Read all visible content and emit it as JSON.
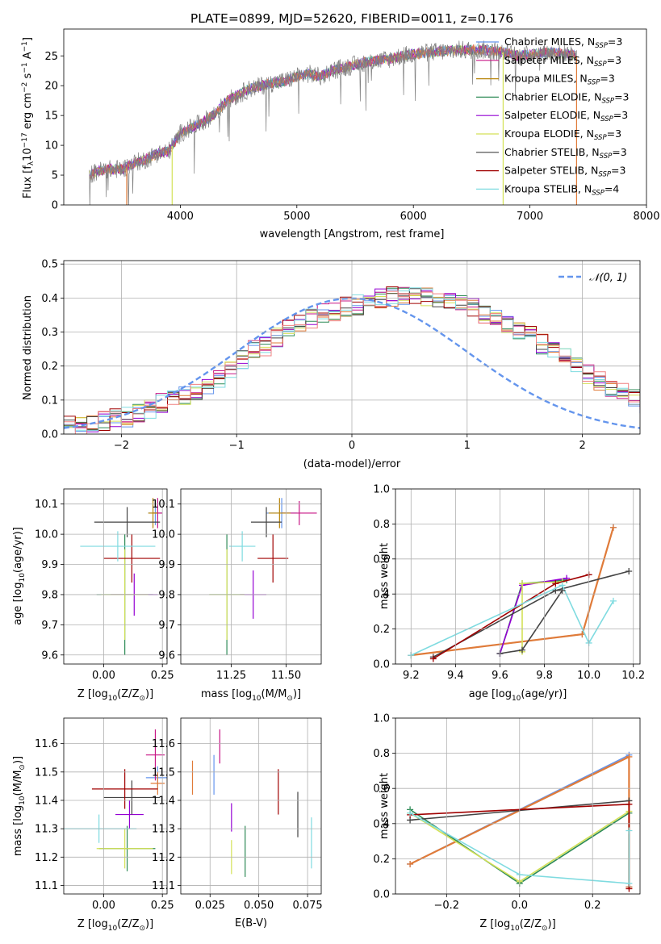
{
  "colors": {
    "Chabrier MILES": "#6495ed",
    "Salpeter MILES": "#c71585",
    "Kroupa MILES": "#b8860b",
    "Chabrier ELODIE": "#2e8b57",
    "Salpeter ELODIE": "#9400d3",
    "Kroupa ELODIE": "#d4e157",
    "Chabrier STELIB": "#444444",
    "Salpeter STELIB": "#a00000",
    "Kroupa STELIB": "#7fdbe0",
    "gaussian": "#6495ed",
    "orange": "#e07b39",
    "pink": "#f08080",
    "green2": "#7cb342"
  },
  "chart_data": [
    {
      "type": "line",
      "title": "PLATE=0899, MJD=52620, FIBERID=0011, z=0.176",
      "xlabel": "wavelength [Angstrom, rest frame]",
      "ylabel_parts": [
        "Flux [f",
        "λ",
        "10",
        "−17",
        " erg cm",
        "−2",
        " s",
        "−1",
        " A",
        "−1",
        "]"
      ],
      "xlim": [
        3000,
        8000
      ],
      "ylim": [
        0,
        29.5
      ],
      "xticks": [
        "4000",
        "5000",
        "6000",
        "7000",
        "8000"
      ],
      "yticks": [
        "0",
        "5",
        "10",
        "15",
        "20",
        "25"
      ],
      "legend_position": "upper right",
      "legend": [
        {
          "label": "Chabrier MILES, N",
          "sub": "SSP",
          "tail": "=3"
        },
        {
          "label": "Salpeter MILES, N",
          "sub": "SSP",
          "tail": "=3"
        },
        {
          "label": "Kroupa MILES, N",
          "sub": "SSP",
          "tail": "=3"
        },
        {
          "label": "Chabrier ELODIE, N",
          "sub": "SSP",
          "tail": "=3"
        },
        {
          "label": "Salpeter ELODIE, N",
          "sub": "SSP",
          "tail": "=3"
        },
        {
          "label": "Kroupa ELODIE, N",
          "sub": "SSP",
          "tail": "=3"
        },
        {
          "label": "Chabrier STELIB, N",
          "sub": "SSP",
          "tail": "=3"
        },
        {
          "label": "Salpeter STELIB, N",
          "sub": "SSP",
          "tail": "=3"
        },
        {
          "label": "Kroupa STELIB, N",
          "sub": "SSP",
          "tail": "=4"
        }
      ],
      "continuum": [
        [
          3220,
          5
        ],
        [
          3300,
          5.7
        ],
        [
          3400,
          6
        ],
        [
          3500,
          6
        ],
        [
          3600,
          7
        ],
        [
          3700,
          7.6
        ],
        [
          3800,
          8.6
        ],
        [
          3900,
          9
        ],
        [
          4000,
          12
        ],
        [
          4100,
          13
        ],
        [
          4200,
          14
        ],
        [
          4300,
          15.3
        ],
        [
          4400,
          17.5
        ],
        [
          4500,
          18.5
        ],
        [
          4600,
          19.5
        ],
        [
          4700,
          20
        ],
        [
          4800,
          20.5
        ],
        [
          4900,
          20.8
        ],
        [
          5000,
          21.5
        ],
        [
          5100,
          22
        ],
        [
          5200,
          21.5
        ],
        [
          5300,
          22.5
        ],
        [
          5400,
          23
        ],
        [
          5500,
          23.5
        ],
        [
          5600,
          24
        ],
        [
          5700,
          24.2
        ],
        [
          5800,
          24.5
        ],
        [
          5900,
          25
        ],
        [
          6000,
          25.3
        ],
        [
          6100,
          25.5
        ],
        [
          6200,
          25.7
        ],
        [
          6300,
          25.8
        ],
        [
          6400,
          26
        ],
        [
          6500,
          26
        ],
        [
          6600,
          26
        ],
        [
          6700,
          25.8
        ],
        [
          6800,
          25.5
        ],
        [
          6900,
          25
        ],
        [
          7000,
          25.2
        ],
        [
          7100,
          25.5
        ],
        [
          7200,
          25.5
        ],
        [
          7300,
          25.3
        ],
        [
          7400,
          25
        ]
      ],
      "drops": [
        {
          "x": 3540,
          "series": "orange"
        },
        {
          "x": 3930,
          "series": "Kroupa ELODIE"
        },
        {
          "x": 6770,
          "series": "Kroupa ELODIE"
        },
        {
          "x": 7400,
          "series": "orange"
        }
      ]
    },
    {
      "type": "histogram",
      "xlabel": "(data-model)/error",
      "ylabel": "Normed distribution",
      "xlim": [
        -2.5,
        2.5
      ],
      "ylim": [
        0,
        0.51
      ],
      "xticks": [
        "−2",
        "−1",
        "0",
        "1",
        "2"
      ],
      "yticks": [
        "0.0",
        "0.1",
        "0.2",
        "0.3",
        "0.4",
        "0.5"
      ],
      "legend_position": "upper right",
      "legend": [
        "𝒩(0, 1)"
      ],
      "bin_width": 0.1,
      "base_hist": [
        0.025,
        0.028,
        0.033,
        0.04,
        0.048,
        0.05,
        0.06,
        0.075,
        0.09,
        0.1,
        0.11,
        0.125,
        0.145,
        0.165,
        0.195,
        0.22,
        0.245,
        0.26,
        0.285,
        0.305,
        0.32,
        0.34,
        0.355,
        0.36,
        0.375,
        0.38,
        0.39,
        0.4,
        0.405,
        0.41,
        0.41,
        0.4,
        0.395,
        0.39,
        0.38,
        0.37,
        0.355,
        0.34,
        0.325,
        0.31,
        0.29,
        0.265,
        0.245,
        0.225,
        0.2,
        0.175,
        0.155,
        0.135,
        0.12,
        0.105,
        0.09,
        0.075,
        0.065,
        0.055,
        0.048,
        0.04,
        0.033,
        0.028,
        0.025,
        0.02
      ]
    },
    {
      "type": "scatter",
      "xlabel": "Z [log10(Z/Z⊙)]",
      "ylabel": "age  [log10(age/yr)]",
      "xlim": [
        -0.17,
        0.27
      ],
      "ylim": [
        9.57,
        10.15
      ],
      "xticks": [
        "0.00",
        "0.25"
      ],
      "yticks": [
        "9.6",
        "9.7",
        "9.8",
        "9.9",
        "10.0",
        "10.1"
      ],
      "errorbars": [
        {
          "c": "Chabrier MILES",
          "x": 0.22,
          "y": 10.07,
          "xe": 0.03,
          "ye": 0.04
        },
        {
          "c": "Salpeter MILES",
          "x": 0.23,
          "y": 10.07,
          "xe": 0.02,
          "ye": 0.05
        },
        {
          "c": "Kroupa MILES",
          "x": 0.21,
          "y": 10.07,
          "xe": 0.02,
          "ye": 0.05
        },
        {
          "c": "Chabrier ELODIE",
          "x": 0.09,
          "y": 9.8,
          "xe": 0.12,
          "ye": 0.2
        },
        {
          "c": "Salpeter ELODIE",
          "x": 0.13,
          "y": 9.8,
          "xe": 0.1,
          "ye": 0.07
        },
        {
          "c": "Kroupa ELODIE",
          "x": 0.09,
          "y": 9.8,
          "xe": 0.1,
          "ye": 0.15
        },
        {
          "c": "Chabrier STELIB",
          "x": 0.1,
          "y": 10.04,
          "xe": 0.14,
          "ye": 0.05
        },
        {
          "c": "Salpeter STELIB",
          "x": 0.12,
          "y": 9.92,
          "xe": 0.12,
          "ye": 0.08
        },
        {
          "c": "Kroupa STELIB",
          "x": 0.06,
          "y": 9.96,
          "xe": 0.16,
          "ye": 0.05
        }
      ]
    },
    {
      "type": "scatter",
      "xlabel": "mass [log10(M/M⊙)]",
      "ylabel": "",
      "xlim": [
        11.02,
        11.66
      ],
      "ylim": [
        9.57,
        10.15
      ],
      "xticks": [
        "11.25",
        "11.50"
      ],
      "yticks": [
        "9.6",
        "9.7",
        "9.8",
        "9.9",
        "10.0",
        "10.1"
      ],
      "errorbars": [
        {
          "c": "Chabrier MILES",
          "x": 11.48,
          "y": 10.07,
          "xe": 0.07,
          "ye": 0.05
        },
        {
          "c": "Salpeter MILES",
          "x": 11.56,
          "y": 10.07,
          "xe": 0.08,
          "ye": 0.04
        },
        {
          "c": "Kroupa MILES",
          "x": 11.47,
          "y": 10.07,
          "xe": 0.05,
          "ye": 0.05
        },
        {
          "c": "Chabrier ELODIE",
          "x": 11.23,
          "y": 9.8,
          "xe": 0.08,
          "ye": 0.2
        },
        {
          "c": "Salpeter ELODIE",
          "x": 11.35,
          "y": 9.8,
          "xe": 0.06,
          "ye": 0.08
        },
        {
          "c": "Kroupa ELODIE",
          "x": 11.23,
          "y": 9.8,
          "xe": 0.08,
          "ye": 0.15
        },
        {
          "c": "Chabrier STELIB",
          "x": 11.41,
          "y": 10.04,
          "xe": 0.07,
          "ye": 0.05
        },
        {
          "c": "Salpeter STELIB",
          "x": 11.44,
          "y": 9.92,
          "xe": 0.07,
          "ye": 0.08
        },
        {
          "c": "Kroupa STELIB",
          "x": 11.3,
          "y": 9.96,
          "xe": 0.06,
          "ye": 0.05
        }
      ]
    },
    {
      "type": "line",
      "xlabel": "age  [log10(age/yr)]",
      "ylabel": "mass weight",
      "xlim": [
        9.13,
        10.23
      ],
      "ylim": [
        0,
        1
      ],
      "xticks": [
        "9.2",
        "9.4",
        "9.6",
        "9.8",
        "10.0",
        "10.2"
      ],
      "yticks": [
        "0.0",
        "0.2",
        "0.4",
        "0.6",
        "0.8",
        "1.0"
      ],
      "series": [
        {
          "c": "Chabrier MILES",
          "x": [
            9.2,
            9.97,
            10.11
          ],
          "y": [
            0.05,
            0.17,
            0.78
          ]
        },
        {
          "c": "orange",
          "x": [
            9.2,
            9.97,
            10.11
          ],
          "y": [
            0.05,
            0.17,
            0.78
          ]
        },
        {
          "c": "Chabrier ELODIE",
          "x": [
            9.6,
            9.7,
            9.9
          ],
          "y": [
            0.06,
            0.46,
            0.48
          ]
        },
        {
          "c": "Salpeter ELODIE",
          "x": [
            9.6,
            9.7,
            9.9
          ],
          "y": [
            0.06,
            0.45,
            0.49
          ]
        },
        {
          "c": "Kroupa ELODIE",
          "x": [
            9.7,
            9.7,
            9.88
          ],
          "y": [
            0.07,
            0.46,
            0.47
          ]
        },
        {
          "c": "Chabrier STELIB",
          "x": [
            9.3,
            9.85,
            10.18
          ],
          "y": [
            0.04,
            0.42,
            0.53
          ]
        },
        {
          "c": "Salpeter STELIB",
          "x": [
            9.3,
            9.85,
            10.0
          ],
          "y": [
            0.03,
            0.46,
            0.51
          ]
        },
        {
          "c": "Kroupa STELIB",
          "x": [
            9.2,
            9.88,
            10.0,
            10.11
          ],
          "y": [
            0.05,
            0.45,
            0.12,
            0.36
          ]
        },
        {
          "c": "Chabrier STELIB",
          "x": [
            9.6,
            9.7,
            9.88
          ],
          "y": [
            0.06,
            0.08,
            0.42
          ]
        }
      ]
    },
    {
      "type": "scatter",
      "xlabel": "Z [log10(Z/Z⊙)]",
      "ylabel": "mass [log10(M/M⊙)]",
      "xlim": [
        -0.17,
        0.27
      ],
      "ylim": [
        11.07,
        11.69
      ],
      "xticks": [
        "0.00",
        "0.25"
      ],
      "yticks": [
        "11.1",
        "11.2",
        "11.3",
        "11.4",
        "11.5",
        "11.6"
      ],
      "errorbars": [
        {
          "c": "Chabrier MILES",
          "x": 0.23,
          "y": 11.48,
          "xe": 0.05,
          "ye": 0.04
        },
        {
          "c": "Salpeter MILES",
          "x": 0.22,
          "y": 11.56,
          "xe": 0.04,
          "ye": 0.09
        },
        {
          "c": "orange",
          "x": 0.23,
          "y": 11.46,
          "xe": 0.03,
          "ye": 0.04
        },
        {
          "c": "Chabrier ELODIE",
          "x": 0.1,
          "y": 11.23,
          "xe": 0.12,
          "ye": 0.08
        },
        {
          "c": "Salpeter ELODIE",
          "x": 0.11,
          "y": 11.35,
          "xe": 0.06,
          "ye": 0.05
        },
        {
          "c": "Kroupa ELODIE",
          "x": 0.09,
          "y": 11.23,
          "xe": 0.12,
          "ye": 0.07
        },
        {
          "c": "Chabrier STELIB",
          "x": 0.12,
          "y": 11.41,
          "xe": 0.12,
          "ye": 0.06
        },
        {
          "c": "Salpeter STELIB",
          "x": 0.09,
          "y": 11.44,
          "xe": 0.14,
          "ye": 0.07
        },
        {
          "c": "Kroupa STELIB",
          "x": -0.02,
          "y": 11.3,
          "xe": 0.16,
          "ye": 0.05
        }
      ]
    },
    {
      "type": "scatter",
      "xlabel": "E(B-V)",
      "ylabel": "",
      "xlim": [
        0.01,
        0.082
      ],
      "ylim": [
        11.07,
        11.69
      ],
      "xticks": [
        "0.025",
        "0.050",
        "0.075"
      ],
      "yticks": [
        "11.1",
        "11.2",
        "11.3",
        "11.4",
        "11.5",
        "11.6"
      ],
      "errorbars": [
        {
          "c": "orange",
          "x": 0.016,
          "y": 11.48,
          "xe": 0,
          "ye": 0.06
        },
        {
          "c": "Chabrier MILES",
          "x": 0.027,
          "y": 11.49,
          "xe": 0,
          "ye": 0.07
        },
        {
          "c": "Salpeter MILES",
          "x": 0.03,
          "y": 11.59,
          "xe": 0,
          "ye": 0.06
        },
        {
          "c": "Salpeter ELODIE",
          "x": 0.036,
          "y": 11.34,
          "xe": 0,
          "ye": 0.05
        },
        {
          "c": "Kroupa ELODIE",
          "x": 0.036,
          "y": 11.2,
          "xe": 0,
          "ye": 0.06
        },
        {
          "c": "Chabrier ELODIE",
          "x": 0.043,
          "y": 11.22,
          "xe": 0,
          "ye": 0.09
        },
        {
          "c": "Salpeter STELIB",
          "x": 0.06,
          "y": 11.43,
          "xe": 0,
          "ye": 0.08
        },
        {
          "c": "Chabrier STELIB",
          "x": 0.07,
          "y": 11.35,
          "xe": 0,
          "ye": 0.08
        },
        {
          "c": "Kroupa STELIB",
          "x": 0.077,
          "y": 11.25,
          "xe": 0,
          "ye": 0.09
        }
      ]
    },
    {
      "type": "line",
      "xlabel": "Z [log10(Z/Z⊙)]",
      "ylabel": "mass weight",
      "xlim": [
        -0.34,
        0.33
      ],
      "ylim": [
        0,
        1
      ],
      "xticks": [
        "−0.2",
        "0.0",
        "0.2"
      ],
      "yticks": [
        "0.0",
        "0.2",
        "0.4",
        "0.6",
        "0.8",
        "1.0"
      ],
      "series": [
        {
          "c": "Chabrier MILES",
          "x": [
            -0.3,
            0.3,
            0.3
          ],
          "y": [
            0.17,
            0.79,
            0.04
          ]
        },
        {
          "c": "orange",
          "x": [
            -0.3,
            0.3,
            0.3
          ],
          "y": [
            0.17,
            0.78,
            0.04
          ]
        },
        {
          "c": "Chabrier ELODIE",
          "x": [
            -0.3,
            0.0,
            0.3
          ],
          "y": [
            0.48,
            0.06,
            0.46
          ]
        },
        {
          "c": "Kroupa ELODIE",
          "x": [
            -0.3,
            0.0,
            0.3
          ],
          "y": [
            0.46,
            0.07,
            0.47
          ]
        },
        {
          "c": "Chabrier STELIB",
          "x": [
            -0.3,
            0.3
          ],
          "y": [
            0.42,
            0.53
          ]
        },
        {
          "c": "Salpeter STELIB",
          "x": [
            -0.3,
            0.3,
            0.3
          ],
          "y": [
            0.45,
            0.51,
            0.03
          ]
        },
        {
          "c": "Kroupa STELIB",
          "x": [
            -0.3,
            0.0,
            0.3,
            0.3
          ],
          "y": [
            0.46,
            0.11,
            0.06,
            0.36
          ]
        }
      ]
    }
  ]
}
